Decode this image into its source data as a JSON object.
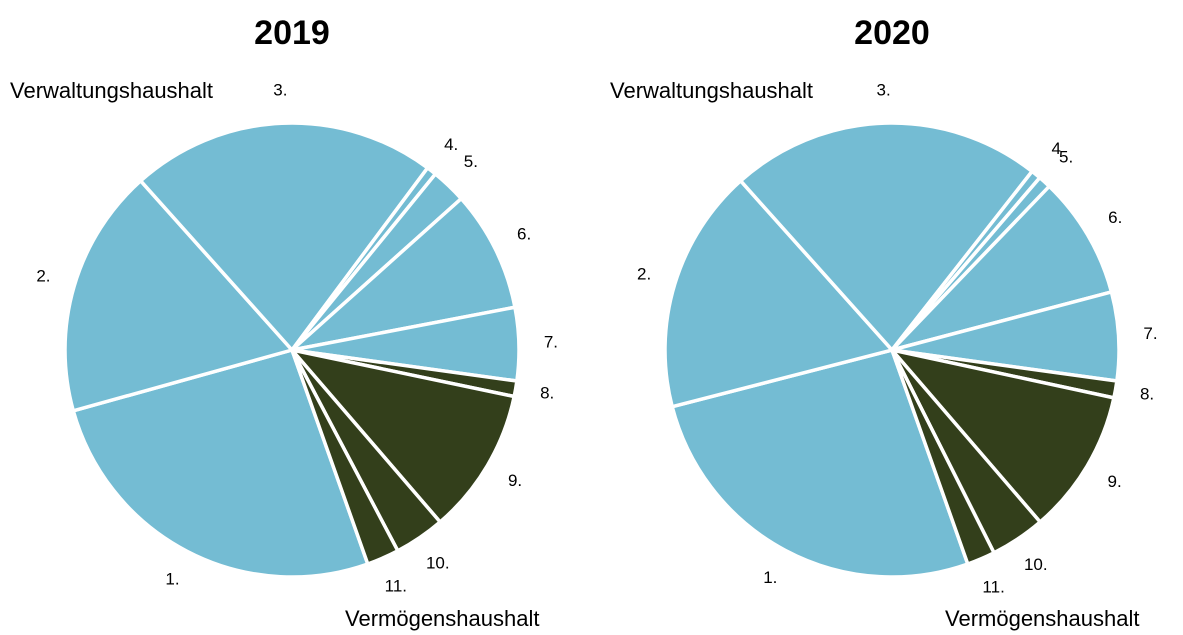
{
  "chart_data": [
    {
      "type": "pie",
      "title": "2019",
      "categories": [
        "1.",
        "2.",
        "3.",
        "4.",
        "5.",
        "6.",
        "7.",
        "8.",
        "9.",
        "10.",
        "11."
      ],
      "values": [
        26.1,
        17.7,
        21.8,
        0.7,
        2.5,
        8.6,
        5.2,
        1.1,
        10.4,
        3.6,
        2.3
      ],
      "colors": [
        "#74bcd3",
        "#74bcd3",
        "#74bcd3",
        "#74bcd3",
        "#74bcd3",
        "#74bcd3",
        "#74bcd3",
        "#333f1b",
        "#333f1b",
        "#333f1b",
        "#333f1b"
      ],
      "annotations": [
        "Verwaltungshaushalt",
        "Vermögenshaushalt"
      ]
    },
    {
      "type": "pie",
      "title": "2020",
      "categories": [
        "1.",
        "2.",
        "3.",
        "4",
        "5.",
        "6.",
        "7.",
        "8.",
        "9.",
        "10.",
        "11."
      ],
      "values": [
        26.4,
        17.4,
        22.2,
        0.7,
        0.9,
        8.7,
        6.3,
        1.2,
        10.3,
        3.9,
        2.0
      ],
      "colors": [
        "#74bcd3",
        "#74bcd3",
        "#74bcd3",
        "#74bcd3",
        "#74bcd3",
        "#74bcd3",
        "#74bcd3",
        "#333f1b",
        "#333f1b",
        "#333f1b",
        "#333f1b"
      ],
      "annotations": [
        "Verwaltungshaushalt",
        "Vermögenshaushalt"
      ]
    }
  ]
}
